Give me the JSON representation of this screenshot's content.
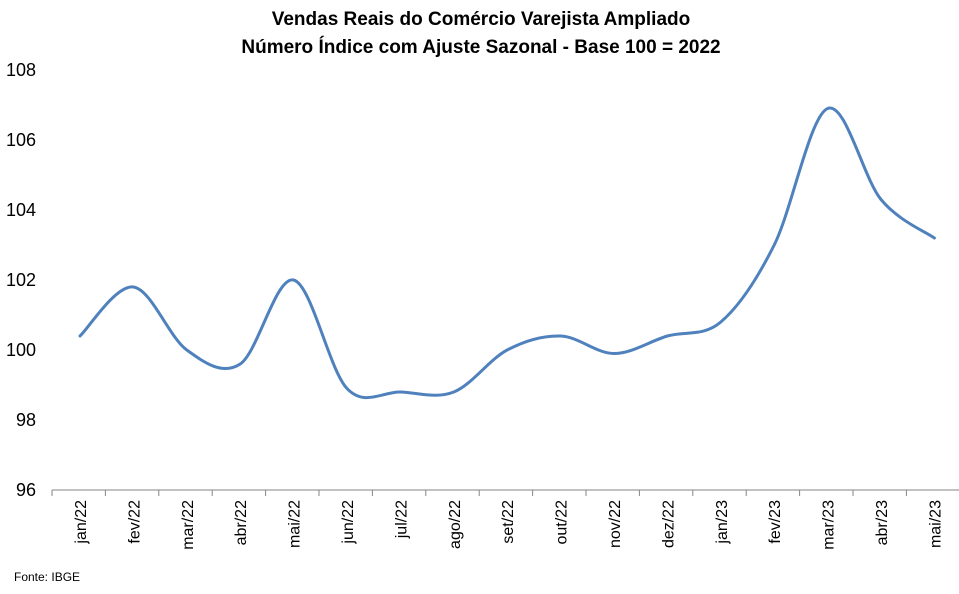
{
  "chart_data": {
    "type": "line",
    "title": "Vendas Reais do Comércio Varejista Ampliado",
    "subtitle": "Número Índice com Ajuste Sazonal - Base 100 = 2022",
    "categories": [
      "jan/22",
      "fev/22",
      "mar/22",
      "abr/22",
      "mai/22",
      "jun/22",
      "jul/22",
      "ago/22",
      "set/22",
      "out/22",
      "nov/22",
      "dez/22",
      "jan/23",
      "fev/23",
      "mar/23",
      "abr/23",
      "mai/23"
    ],
    "series": [
      {
        "values": [
          100.4,
          101.8,
          100.0,
          99.6,
          102.0,
          98.9,
          98.8,
          98.8,
          100.0,
          100.4,
          99.9,
          100.4,
          100.8,
          103.0,
          106.9,
          104.3,
          103.2
        ]
      }
    ],
    "yticks": [
      "96",
      "98",
      "100",
      "102",
      "104",
      "106",
      "108"
    ],
    "ylim": [
      96,
      108
    ],
    "grid": false,
    "legend": "none",
    "line_color": "#4F81BD"
  },
  "source": "Fonte: IBGE"
}
